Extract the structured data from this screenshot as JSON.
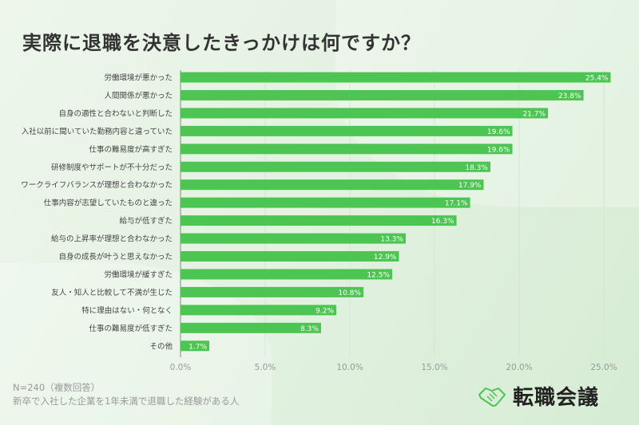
{
  "title": "実際に退職を決意したきっかけは何ですか？",
  "notes": {
    "sample": "N=240（複数回答）",
    "population": "新卒で入社した企業を1年未満で退職した経験がある人"
  },
  "logo": {
    "text": "転職会議",
    "icon": "handshake-icon"
  },
  "colors": {
    "bar": "#4cc552",
    "axis": "#888888"
  },
  "chart_data": {
    "type": "bar",
    "orientation": "horizontal",
    "categories": [
      "労働環境が悪かった",
      "人間関係が悪かった",
      "自身の適性と合わないと判断した",
      "入社以前に聞いていた勤務内容と違っていた",
      "仕事の難易度が高すぎた",
      "研修制度やサポートが不十分だった",
      "ワークライフバランスが理想と合わなかった",
      "仕事内容が志望していたものと違った",
      "給与が低すぎた",
      "給与の上昇率が理想と合わなかった",
      "自身の成長が叶うと思えなかった",
      "労働環境が緩すぎた",
      "友人・知人と比較して不満が生じた",
      "特に理由はない・何となく",
      "仕事の難易度が低すぎた",
      "その他"
    ],
    "values": [
      25.4,
      23.8,
      21.7,
      19.6,
      19.6,
      18.3,
      17.9,
      17.1,
      16.3,
      13.3,
      12.9,
      12.5,
      10.8,
      9.2,
      8.3,
      1.7
    ],
    "data_labels": [
      "25.4%",
      "23.8%",
      "21.7%",
      "19.6%",
      "19.6%",
      "18.3%",
      "17.9%",
      "17.1%",
      "16.3%",
      "13.3%",
      "12.9%",
      "12.5%",
      "10.8%",
      "9.2%",
      "8.3%",
      "1.7%"
    ],
    "xlim": [
      0,
      25
    ],
    "x_ticks": [
      "0.0%",
      "5.0%",
      "10.0%",
      "15.0%",
      "20.0%",
      "25.0%"
    ],
    "grid": true,
    "legend": "none"
  }
}
